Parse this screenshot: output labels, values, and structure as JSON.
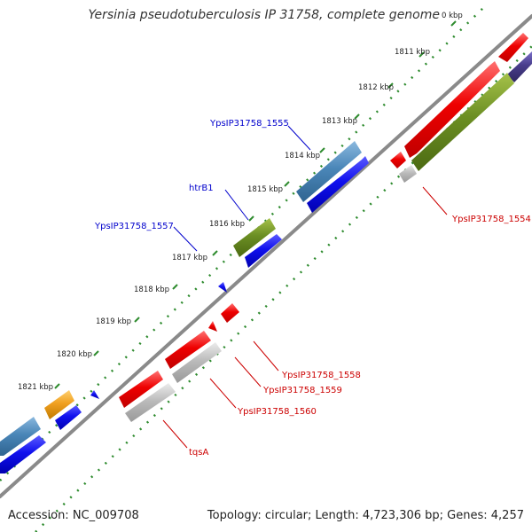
{
  "title": "Yersinia pseudotuberculosis IP 31758, complete genome",
  "footer": {
    "accession": "Accession: NC_009708",
    "summary": "Topology: circular; Length: 4,723,306 bp; Genes: 4,257"
  },
  "colors": {
    "backbone": "#8a8a8a",
    "tick_dots": "#2e8b2e",
    "label_forward": "#0000cc",
    "label_reverse": "#cc0000",
    "feature_red": "#ee0000",
    "feature_blue": "#1010ee",
    "feature_steelblue": "#4a86b8",
    "feature_olive": "#6b8e23",
    "feature_gray": "#bbbbbb",
    "feature_orange": "#f0a020",
    "feature_slate": "#483d8b"
  },
  "ticks": [
    "0 kbp",
    "1811 kbp",
    "1812 kbp",
    "1813 kbp",
    "1814 kbp",
    "1815 kbp",
    "1816 kbp",
    "1817 kbp",
    "1818 kbp",
    "1819 kbp",
    "1820 kbp",
    "1821 kbp"
  ],
  "labels": {
    "ypsIP31758_1555": "YpsIP31758_1555",
    "htrB1": "htrB1",
    "ypsIP31758_1557": "YpsIP31758_1557",
    "ypsIP31758_1554": "YpsIP31758_1554",
    "ypsIP31758_1558": "YpsIP31758_1558",
    "ypsIP31758_1559": "YpsIP31758_1559",
    "ypsIP31758_1560": "YpsIP31758_1560",
    "tqsA": "tqsA"
  }
}
